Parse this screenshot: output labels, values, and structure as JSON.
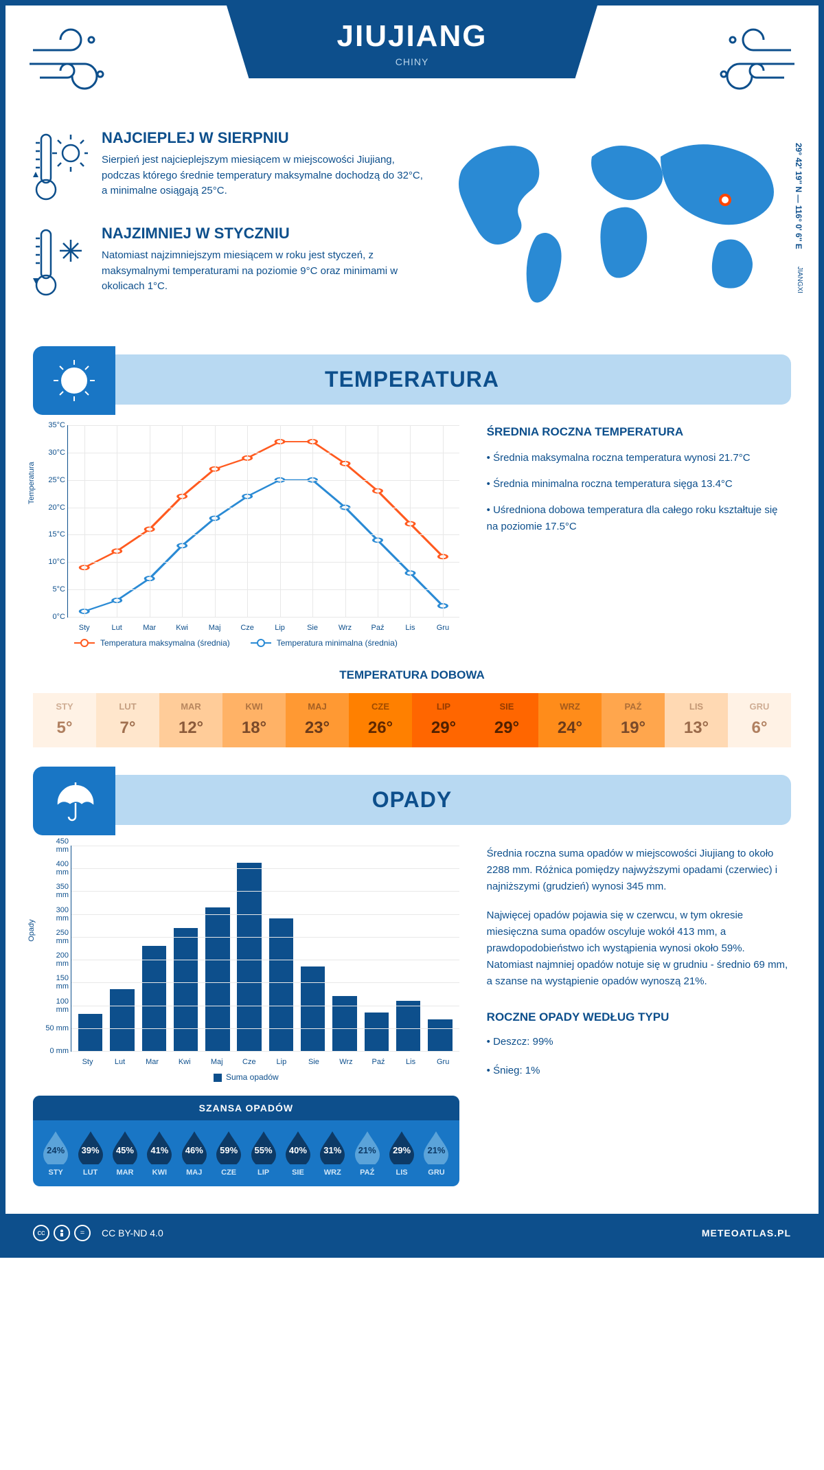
{
  "header": {
    "city": "JIUJIANG",
    "country": "CHINY",
    "coords": "29° 42' 19'' N — 116° 0' 6'' E",
    "province": "JIANGXI"
  },
  "intro": {
    "hot": {
      "title": "NAJCIEPLEJ W SIERPNIU",
      "text": "Sierpień jest najcieplejszym miesiącem w miejscowości Jiujiang, podczas którego średnie temperatury maksymalne dochodzą do 32°C, a minimalne osiągają 25°C."
    },
    "cold": {
      "title": "NAJZIMNIEJ W STYCZNIU",
      "text": "Natomiast najzimniejszym miesiącem w roku jest styczeń, z maksymalnymi temperaturami na poziomie 9°C oraz minimami w okolicach 1°C."
    }
  },
  "sections": {
    "temperature": "TEMPERATURA",
    "precip": "OPADY"
  },
  "temp_chart": {
    "type": "line",
    "months": [
      "Sty",
      "Lut",
      "Mar",
      "Kwi",
      "Maj",
      "Cze",
      "Lip",
      "Sie",
      "Wrz",
      "Paź",
      "Lis",
      "Gru"
    ],
    "max": [
      9,
      12,
      16,
      22,
      27,
      29,
      32,
      32,
      28,
      23,
      17,
      11
    ],
    "min": [
      1,
      3,
      7,
      13,
      18,
      22,
      25,
      25,
      20,
      14,
      8,
      2
    ],
    "max_color": "#ff5a1f",
    "min_color": "#2a8ad4",
    "ylim": [
      0,
      35
    ],
    "ytick_step": 5,
    "y_axis_title": "Temperatura",
    "y_tick_suffix": "°C",
    "grid_color": "#e8e8e8",
    "legend_max": "Temperatura maksymalna (średnia)",
    "legend_min": "Temperatura minimalna (średnia)"
  },
  "temp_info": {
    "title": "ŚREDNIA ROCZNA TEMPERATURA",
    "b1": "• Średnia maksymalna roczna temperatura wynosi 21.7°C",
    "b2": "• Średnia minimalna roczna temperatura sięga 13.4°C",
    "b3": "• Uśredniona dobowa temperatura dla całego roku kształtuje się na poziomie 17.5°C"
  },
  "daily": {
    "title": "TEMPERATURA DOBOWA",
    "months": [
      "STY",
      "LUT",
      "MAR",
      "KWI",
      "MAJ",
      "CZE",
      "LIP",
      "SIE",
      "WRZ",
      "PAŹ",
      "LIS",
      "GRU"
    ],
    "temps": [
      "5°",
      "7°",
      "12°",
      "18°",
      "23°",
      "26°",
      "29°",
      "29°",
      "24°",
      "19°",
      "13°",
      "6°"
    ],
    "bg_colors": [
      "#fff2e5",
      "#ffe6cc",
      "#ffcc99",
      "#ffb266",
      "#ff9933",
      "#ff8000",
      "#ff6600",
      "#ff6600",
      "#ff8c1a",
      "#ffa64d",
      "#ffd9b3",
      "#fff2e5"
    ],
    "text_colors": [
      "#b08060",
      "#a07050",
      "#8a5a3a",
      "#7a4a2a",
      "#6a3a1a",
      "#602800",
      "#502000",
      "#502000",
      "#6a3a1a",
      "#7a4a2a",
      "#9a6a4a",
      "#b08060"
    ]
  },
  "precip_chart": {
    "type": "bar",
    "months": [
      "Sty",
      "Lut",
      "Mar",
      "Kwi",
      "Maj",
      "Cze",
      "Lip",
      "Sie",
      "Wrz",
      "Paź",
      "Lis",
      "Gru"
    ],
    "values": [
      82,
      135,
      230,
      270,
      315,
      413,
      290,
      185,
      120,
      85,
      110,
      69
    ],
    "ylim": [
      0,
      450
    ],
    "ytick_step": 50,
    "y_axis_title": "Opady",
    "y_tick_suffix": " mm",
    "bar_color": "#0d4f8c",
    "grid_color": "#e8e8e8",
    "legend": "Suma opadów"
  },
  "precip_info": {
    "p1": "Średnia roczna suma opadów w miejscowości Jiujiang to około 2288 mm. Różnica pomiędzy najwyższymi opadami (czerwiec) i najniższymi (grudzień) wynosi 345 mm.",
    "p2": "Najwięcej opadów pojawia się w czerwcu, w tym okresie miesięczna suma opadów oscyluje wokół 413 mm, a prawdopodobieństwo ich wystąpienia wynosi około 59%. Natomiast najmniej opadów notuje się w grudniu - średnio 69 mm, a szanse na wystąpienie opadów wynoszą 21%.",
    "type_title": "ROCZNE OPADY WEDŁUG TYPU",
    "rain": "• Deszcz: 99%",
    "snow": "• Śnieg: 1%"
  },
  "chance": {
    "title": "SZANSA OPADÓW",
    "months": [
      "STY",
      "LUT",
      "MAR",
      "KWI",
      "MAJ",
      "CZE",
      "LIP",
      "SIE",
      "WRZ",
      "PAŹ",
      "LIS",
      "GRU"
    ],
    "pct": [
      "24%",
      "39%",
      "45%",
      "41%",
      "46%",
      "59%",
      "55%",
      "40%",
      "31%",
      "21%",
      "29%",
      "21%"
    ],
    "fill_colors": [
      "#5ba3d9",
      "#0d3a66",
      "#0d3a66",
      "#0d3a66",
      "#0d3a66",
      "#0d3a66",
      "#0d3a66",
      "#0d3a66",
      "#0d3a66",
      "#5ba3d9",
      "#0d3a66",
      "#5ba3d9"
    ],
    "text_colors": [
      "#0d3a66",
      "#ffffff",
      "#ffffff",
      "#ffffff",
      "#ffffff",
      "#ffffff",
      "#ffffff",
      "#ffffff",
      "#ffffff",
      "#0d3a66",
      "#ffffff",
      "#0d3a66"
    ]
  },
  "footer": {
    "license": "CC BY-ND 4.0",
    "site": "METEOATLAS.PL"
  },
  "map_marker": {
    "left_pct": 79,
    "top_pct": 36
  }
}
